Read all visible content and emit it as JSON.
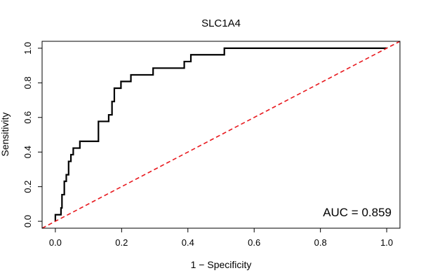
{
  "chart_data": {
    "type": "line",
    "title": "SLC1A4",
    "xlabel": "1 − Specificity",
    "ylabel": "Sensitivity",
    "xlim": [
      -0.04,
      1.04
    ],
    "ylim": [
      -0.04,
      1.04
    ],
    "x_ticks": [
      {
        "value": 0.0,
        "label": "0.0"
      },
      {
        "value": 0.2,
        "label": "0.2"
      },
      {
        "value": 0.4,
        "label": "0.4"
      },
      {
        "value": 0.6,
        "label": "0.6"
      },
      {
        "value": 0.8,
        "label": "0.8"
      },
      {
        "value": 1.0,
        "label": "1.0"
      }
    ],
    "y_ticks": [
      {
        "value": 0.0,
        "label": "0.0"
      },
      {
        "value": 0.2,
        "label": "0.2"
      },
      {
        "value": 0.4,
        "label": "0.4"
      },
      {
        "value": 0.6,
        "label": "0.6"
      },
      {
        "value": 0.8,
        "label": "0.8"
      },
      {
        "value": 1.0,
        "label": "1.0"
      }
    ],
    "grid": false,
    "annotation": "AUC = 0.859",
    "colors": {
      "roc": "#000000",
      "reference": "#e8191e"
    },
    "series": [
      {
        "style": "solid",
        "points": [
          [
            0.0,
            0.0
          ],
          [
            0.0,
            0.038
          ],
          [
            0.017,
            0.038
          ],
          [
            0.017,
            0.077
          ],
          [
            0.02,
            0.077
          ],
          [
            0.02,
            0.154
          ],
          [
            0.027,
            0.154
          ],
          [
            0.027,
            0.231
          ],
          [
            0.033,
            0.231
          ],
          [
            0.033,
            0.269
          ],
          [
            0.04,
            0.269
          ],
          [
            0.04,
            0.346
          ],
          [
            0.047,
            0.346
          ],
          [
            0.047,
            0.385
          ],
          [
            0.054,
            0.385
          ],
          [
            0.054,
            0.423
          ],
          [
            0.074,
            0.423
          ],
          [
            0.074,
            0.462
          ],
          [
            0.13,
            0.462
          ],
          [
            0.13,
            0.577
          ],
          [
            0.161,
            0.577
          ],
          [
            0.161,
            0.615
          ],
          [
            0.171,
            0.615
          ],
          [
            0.171,
            0.692
          ],
          [
            0.178,
            0.692
          ],
          [
            0.178,
            0.769
          ],
          [
            0.198,
            0.769
          ],
          [
            0.198,
            0.808
          ],
          [
            0.228,
            0.808
          ],
          [
            0.228,
            0.846
          ],
          [
            0.295,
            0.846
          ],
          [
            0.295,
            0.885
          ],
          [
            0.389,
            0.885
          ],
          [
            0.389,
            0.923
          ],
          [
            0.409,
            0.923
          ],
          [
            0.409,
            0.962
          ],
          [
            0.51,
            0.962
          ],
          [
            0.51,
            1.0
          ],
          [
            1.0,
            1.0
          ]
        ]
      },
      {
        "style": "dashed",
        "points": [
          [
            -0.04,
            -0.04
          ],
          [
            1.04,
            1.04
          ]
        ]
      }
    ]
  }
}
